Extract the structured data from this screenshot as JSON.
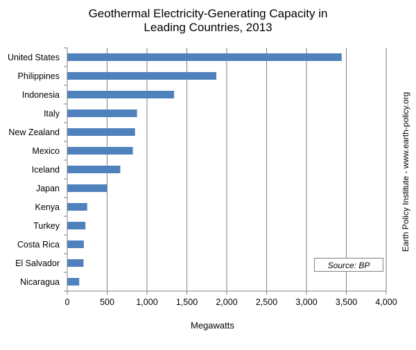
{
  "chart_data": {
    "type": "bar",
    "orientation": "horizontal",
    "title_lines": [
      "Geothermal Electricity-Generating Capacity in",
      "Leading Countries, 2013"
    ],
    "categories": [
      "United States",
      "Philippines",
      "Indonesia",
      "Italy",
      "New Zealand",
      "Mexico",
      "Iceland",
      "Japan",
      "Kenya",
      "Turkey",
      "Costa Rica",
      "El Salvador",
      "Nicaragua"
    ],
    "values": [
      3442,
      1870,
      1340,
      875,
      850,
      823,
      665,
      500,
      250,
      228,
      208,
      204,
      150
    ],
    "xlabel": "Megawatts",
    "ylabel": "",
    "xlim": [
      0,
      4000
    ],
    "x_ticks": [
      0,
      500,
      1000,
      1500,
      2000,
      2500,
      3000,
      3500,
      4000
    ],
    "x_tick_labels": [
      "0",
      "500",
      "1,000",
      "1,500",
      "2,000",
      "2,500",
      "3,000",
      "3,500",
      "4,000"
    ],
    "grid": "vertical",
    "bar_color": "#4f81bd",
    "grid_color": "#808080"
  },
  "source_note": "Source: BP",
  "side_note": "Earth Policy Institute - www.earth-policy.org"
}
